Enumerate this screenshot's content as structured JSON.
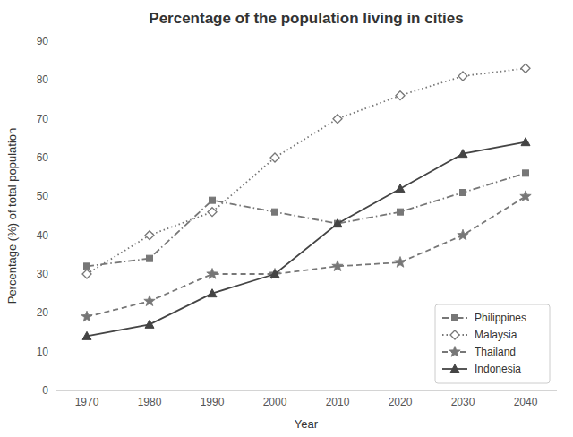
{
  "chart_data": {
    "type": "line",
    "title": "Percentage of the population living in cities",
    "x_label": "Year",
    "y_label": "Percentage (%) of total population",
    "x": [
      1970,
      1980,
      1990,
      2000,
      2010,
      2020,
      2030,
      2040
    ],
    "xlim": [
      1965,
      2045
    ],
    "xticks": [
      1970,
      1980,
      1990,
      2000,
      2010,
      2020,
      2030,
      2040
    ],
    "ylim": [
      0,
      90
    ],
    "yticks": [
      0,
      10,
      20,
      30,
      40,
      50,
      60,
      70,
      80,
      90
    ],
    "grid": false,
    "legend": "lower right",
    "series": [
      {
        "name": "Philippines",
        "color": "#777777",
        "line_style": "dashdot",
        "marker": "square",
        "values": [
          32,
          34,
          49,
          46,
          43,
          46,
          51,
          56
        ]
      },
      {
        "name": "Malaysia",
        "color": "#777777",
        "line_style": "dotted",
        "marker": "open-diamond",
        "values": [
          30,
          40,
          46,
          60,
          70,
          76,
          81,
          83
        ]
      },
      {
        "name": "Thailand",
        "color": "#777777",
        "line_style": "dashed",
        "marker": "star",
        "values": [
          19,
          23,
          30,
          30,
          32,
          33,
          40,
          50
        ]
      },
      {
        "name": "Indonesia",
        "color": "#444444",
        "line_style": "solid",
        "marker": "triangle",
        "values": [
          14,
          17,
          25,
          30,
          43,
          52,
          61,
          64
        ]
      }
    ]
  }
}
